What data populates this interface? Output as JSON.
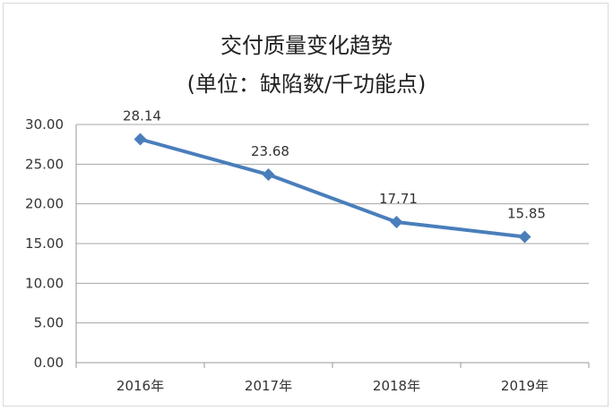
{
  "chart_data": {
    "type": "line",
    "title": "交付质量变化趋势",
    "subtitle": "(单位：缺陷数/千功能点)",
    "categories": [
      "2016年",
      "2017年",
      "2018年",
      "2019年"
    ],
    "series": [
      {
        "values": [
          28.14,
          23.68,
          17.71,
          15.85
        ],
        "color": "#4a7ebb"
      }
    ],
    "data_labels": [
      "28.14",
      "23.68",
      "17.71",
      "15.85"
    ],
    "y_ticks": [
      "0.00",
      "5.00",
      "10.00",
      "15.00",
      "20.00",
      "25.00",
      "30.00"
    ],
    "ylim": [
      0,
      30
    ],
    "grid": true,
    "marker": "diamond"
  }
}
